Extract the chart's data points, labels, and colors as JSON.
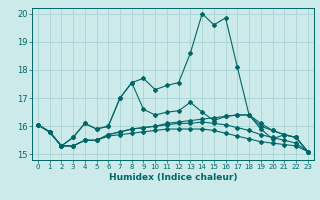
{
  "xlabel": "Humidex (Indice chaleur)",
  "ylabel": "",
  "xlim": [
    -0.5,
    23.5
  ],
  "ylim": [
    14.8,
    20.2
  ],
  "xticks": [
    0,
    1,
    2,
    3,
    4,
    5,
    6,
    7,
    8,
    9,
    10,
    11,
    12,
    13,
    14,
    15,
    16,
    17,
    18,
    19,
    20,
    21,
    22,
    23
  ],
  "yticks": [
    15,
    16,
    17,
    18,
    19,
    20
  ],
  "background_color": "#cceaea",
  "grid_color": "#aad4d4",
  "line_color": "#006666",
  "lines": [
    [
      16.05,
      15.8,
      15.3,
      15.6,
      16.1,
      15.9,
      16.0,
      17.0,
      17.55,
      17.7,
      17.3,
      17.45,
      17.55,
      18.6,
      20.0,
      19.6,
      19.85,
      18.1,
      16.4,
      15.9,
      15.55,
      15.7,
      15.6,
      15.1
    ],
    [
      16.05,
      15.8,
      15.3,
      15.6,
      16.1,
      15.9,
      16.0,
      17.0,
      17.55,
      16.6,
      16.4,
      16.5,
      16.55,
      16.85,
      16.5,
      16.2,
      16.35,
      16.4,
      16.4,
      16.0,
      15.85,
      15.7,
      15.6,
      15.1
    ],
    [
      16.05,
      15.8,
      15.3,
      15.3,
      15.5,
      15.5,
      15.7,
      15.8,
      15.9,
      15.95,
      16.0,
      16.1,
      16.15,
      16.2,
      16.25,
      16.3,
      16.35,
      16.4,
      16.4,
      16.1,
      15.85,
      15.7,
      15.6,
      15.1
    ],
    [
      16.05,
      15.8,
      15.3,
      15.3,
      15.5,
      15.5,
      15.7,
      15.8,
      15.9,
      15.95,
      16.0,
      16.05,
      16.1,
      16.1,
      16.15,
      16.1,
      16.05,
      15.95,
      15.85,
      15.7,
      15.6,
      15.5,
      15.4,
      15.1
    ],
    [
      16.05,
      15.8,
      15.3,
      15.3,
      15.5,
      15.5,
      15.65,
      15.7,
      15.75,
      15.8,
      15.85,
      15.9,
      15.9,
      15.9,
      15.9,
      15.85,
      15.75,
      15.65,
      15.55,
      15.45,
      15.4,
      15.35,
      15.3,
      15.1
    ]
  ]
}
